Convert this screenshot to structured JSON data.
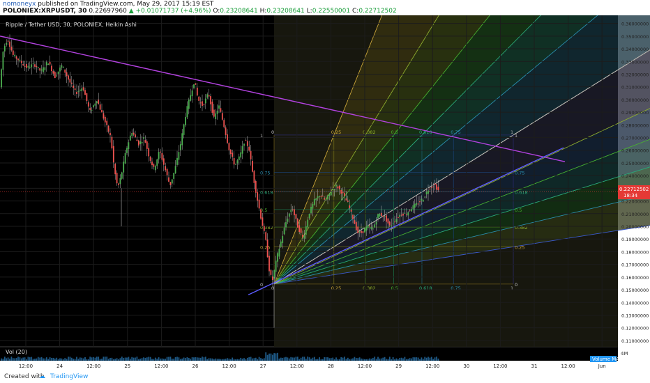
{
  "header": {
    "author": "nomoneyx",
    "published": "published on TradingView.com, May 29, 2017 15:19 EST",
    "symbol_line": "POLONIEX:XRPUSDT, 30",
    "last": "0.22697960",
    "change": "+0.01071737 (+4.96%)",
    "open_label": "O:",
    "open": "0.23208641",
    "high_label": "H:",
    "high": "0.23208641",
    "low_label": "L:",
    "low": "0.22550001",
    "close_label": "C:",
    "close": "0.22712502"
  },
  "legend": {
    "title": "Ripple / Tether USD, 30, POLONIEX, Heikin Ashi"
  },
  "volume": {
    "label": "Vol (20)",
    "tag": "Volume MA",
    "axis_top": "4M"
  },
  "price_tag": {
    "value": "0.22712502",
    "timer": "18:34",
    "color": "#e53935"
  },
  "footer": {
    "created": "Created with",
    "brand": "TradingView"
  },
  "colors": {
    "bull": "#4caf50",
    "bear": "#ef5350",
    "trend_purple": "#b342e0",
    "trend_blue": "#5b5bff",
    "background": "#000000",
    "grid": "#1c1c1c"
  },
  "chart_data": {
    "type": "candlestick",
    "title": "Ripple / Tether USD, 30, POLONIEX, Heikin Ashi",
    "y_ticks": [
      "0.36000000",
      "0.35000000",
      "0.34000000",
      "0.33000000",
      "0.32000000",
      "0.31000000",
      "0.30000000",
      "0.29000000",
      "0.28000000",
      "0.27000000",
      "0.26000000",
      "0.25000000",
      "0.24000000",
      "0.23000000",
      "0.22000000",
      "0.21000000",
      "0.20000000",
      "0.19000000",
      "0.18000000",
      "0.17000000",
      "0.16000000",
      "0.15000000",
      "0.14000000",
      "0.13000000",
      "0.12000000",
      "0.11000000"
    ],
    "ylim": [
      0.105,
      0.362
    ],
    "x_ticks": [
      "12:00",
      "24",
      "12:00",
      "25",
      "12:00",
      "26",
      "12:00",
      "27",
      "12:00",
      "28",
      "12:00",
      "29",
      "12:00",
      "30",
      "12:00",
      "31",
      "12:00",
      "Jun"
    ],
    "price_path": [
      [
        0,
        0.305
      ],
      [
        6,
        0.34
      ],
      [
        12,
        0.348
      ],
      [
        20,
        0.335
      ],
      [
        30,
        0.33
      ],
      [
        40,
        0.325
      ],
      [
        50,
        0.328
      ],
      [
        60,
        0.322
      ],
      [
        70,
        0.33
      ],
      [
        80,
        0.318
      ],
      [
        90,
        0.327
      ],
      [
        100,
        0.315
      ],
      [
        110,
        0.305
      ],
      [
        120,
        0.31
      ],
      [
        130,
        0.29
      ],
      [
        140,
        0.3
      ],
      [
        150,
        0.285
      ],
      [
        160,
        0.27
      ],
      [
        165,
        0.245
      ],
      [
        170,
        0.23
      ],
      [
        175,
        0.24
      ],
      [
        182,
        0.26
      ],
      [
        190,
        0.275
      ],
      [
        200,
        0.265
      ],
      [
        208,
        0.27
      ],
      [
        215,
        0.255
      ],
      [
        222,
        0.245
      ],
      [
        230,
        0.26
      ],
      [
        238,
        0.245
      ],
      [
        245,
        0.232
      ],
      [
        252,
        0.245
      ],
      [
        260,
        0.265
      ],
      [
        268,
        0.29
      ],
      [
        275,
        0.305
      ],
      [
        280,
        0.315
      ],
      [
        285,
        0.3
      ],
      [
        292,
        0.295
      ],
      [
        300,
        0.305
      ],
      [
        308,
        0.285
      ],
      [
        315,
        0.295
      ],
      [
        322,
        0.28
      ],
      [
        330,
        0.26
      ],
      [
        338,
        0.248
      ],
      [
        345,
        0.255
      ],
      [
        352,
        0.268
      ],
      [
        358,
        0.262
      ],
      [
        364,
        0.24
      ],
      [
        370,
        0.222
      ],
      [
        376,
        0.205
      ],
      [
        382,
        0.19
      ],
      [
        388,
        0.162
      ],
      [
        392,
        0.158
      ],
      [
        398,
        0.175
      ],
      [
        405,
        0.19
      ],
      [
        412,
        0.205
      ],
      [
        420,
        0.215
      ],
      [
        428,
        0.2
      ],
      [
        436,
        0.19
      ],
      [
        444,
        0.21
      ],
      [
        452,
        0.22
      ],
      [
        460,
        0.225
      ],
      [
        468,
        0.22
      ],
      [
        476,
        0.228
      ],
      [
        484,
        0.232
      ],
      [
        492,
        0.226
      ],
      [
        500,
        0.218
      ],
      [
        508,
        0.205
      ],
      [
        514,
        0.195
      ],
      [
        520,
        0.195
      ],
      [
        528,
        0.2
      ],
      [
        536,
        0.198
      ],
      [
        544,
        0.21
      ],
      [
        552,
        0.208
      ],
      [
        560,
        0.2
      ],
      [
        568,
        0.205
      ],
      [
        576,
        0.21
      ],
      [
        584,
        0.21
      ],
      [
        592,
        0.215
      ],
      [
        600,
        0.218
      ],
      [
        608,
        0.222
      ],
      [
        616,
        0.23
      ],
      [
        624,
        0.233
      ],
      [
        630,
        0.228
      ]
    ],
    "trendlines": [
      {
        "name": "purple-resistance",
        "color": "#b342e0",
        "from": [
          0,
          0.35
        ],
        "to": [
          810,
          0.251
        ]
      },
      {
        "name": "blue-support",
        "color": "#5b5bff",
        "from": [
          356,
          0.146
        ],
        "to": [
          808,
          0.262
        ]
      }
    ],
    "gann_fan": {
      "origin": [
        393,
        0.1545
      ],
      "box": {
        "x0": 393,
        "x1": 736,
        "y0": 0.1545,
        "y1": 0.272
      },
      "levels": [
        "0",
        "0.25",
        "0.382",
        "0.5",
        "0.618",
        "0.75",
        "1"
      ]
    }
  }
}
